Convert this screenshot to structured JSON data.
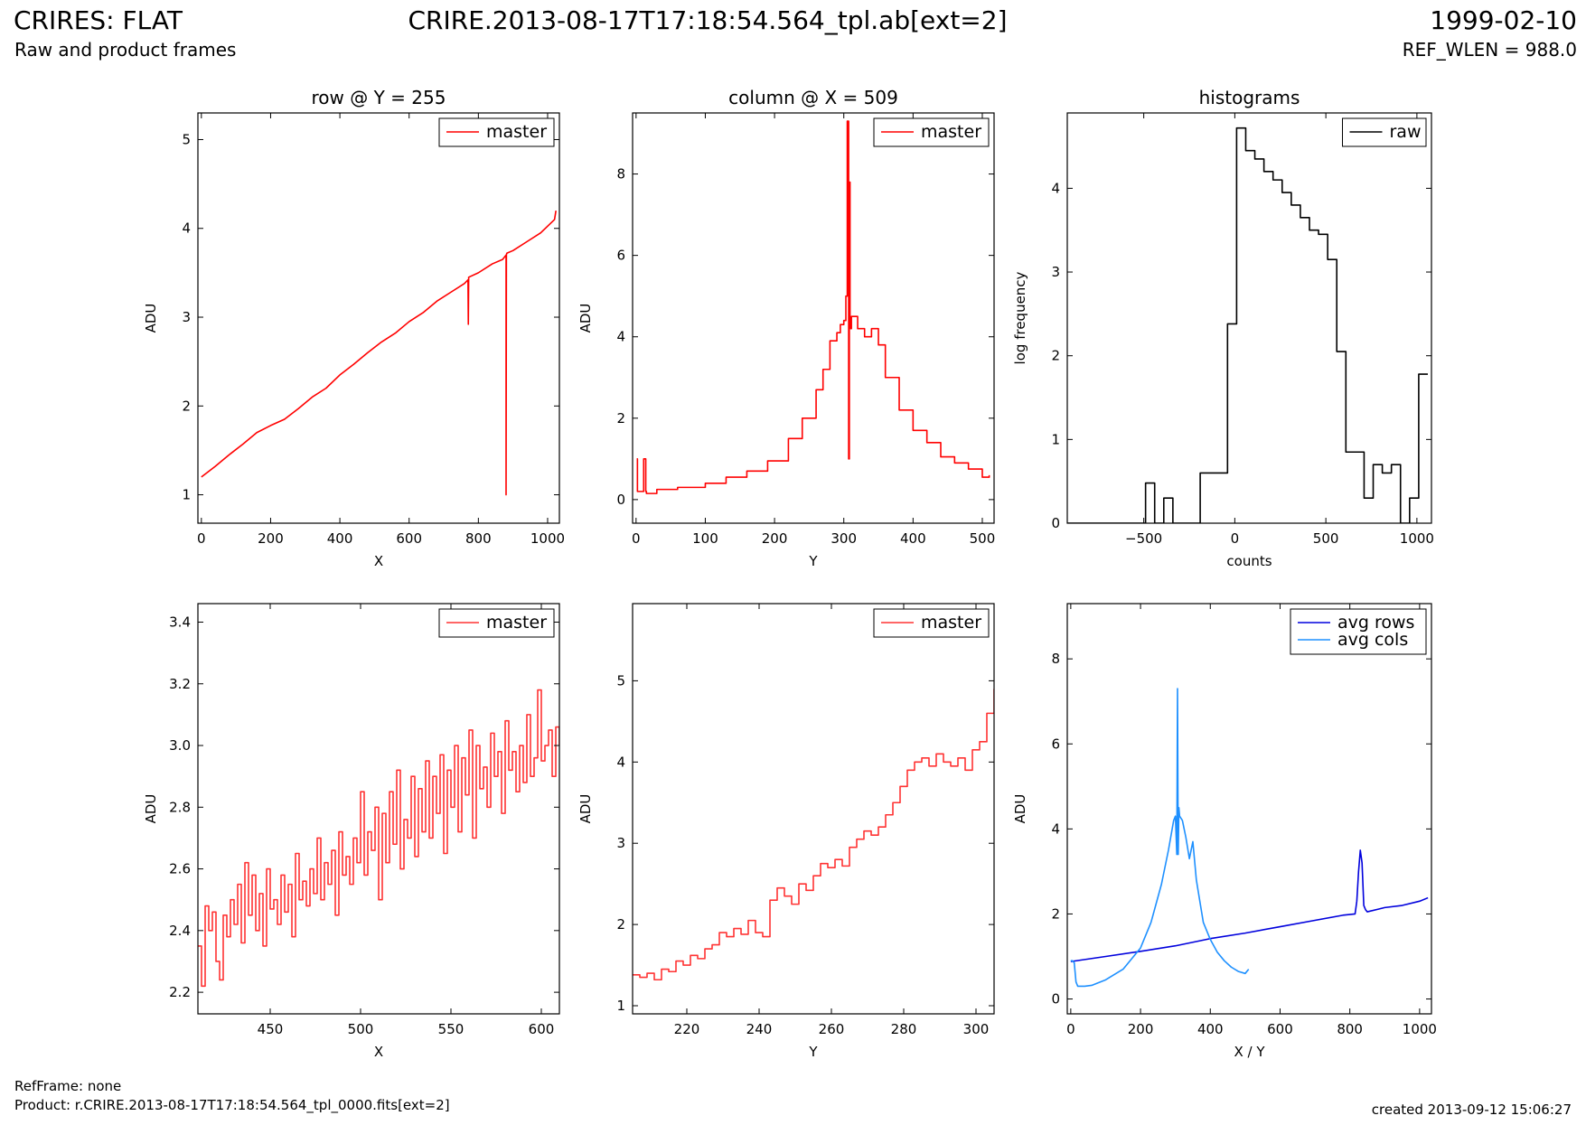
{
  "header": {
    "left_title": "CRIRES: FLAT",
    "left_subtitle": "Raw and product frames",
    "center_title": "CRIRE.2013-08-17T17:18:54.564_tpl.ab[ext=2]",
    "right_date": "1999-02-10",
    "right_subtitle": "REF_WLEN = 988.0"
  },
  "footer": {
    "refframe": "RefFrame: none",
    "product": "Product: r.CRIRE.2013-08-17T17:18:54.564_tpl_0000.fits[ext=2]",
    "created": "created 2013-09-12 15:06:27"
  },
  "colors": {
    "master": "#ff0000",
    "raw": "#000000",
    "avg_rows": "#0000dd",
    "avg_cols": "#1e90ff"
  },
  "chart_data": [
    {
      "type": "line",
      "title": "row @ Y = 255",
      "xlabel": "X",
      "ylabel": "ADU",
      "xlim": [
        -10,
        1034
      ],
      "ylim": [
        0.68,
        5.3
      ],
      "xticks": [
        0,
        200,
        400,
        600,
        800,
        1000
      ],
      "yticks": [
        1,
        2,
        3,
        4,
        5
      ],
      "legend": "top-right",
      "series": [
        {
          "name": "master",
          "color": "#ff0000",
          "step": false,
          "x": [
            0,
            40,
            80,
            120,
            160,
            200,
            240,
            280,
            320,
            360,
            400,
            440,
            480,
            520,
            560,
            600,
            640,
            680,
            720,
            760,
            770,
            771,
            772,
            800,
            840,
            870,
            880,
            880,
            881,
            882,
            900,
            940,
            980,
            1020,
            1024
          ],
          "y": [
            1.2,
            1.32,
            1.45,
            1.57,
            1.7,
            1.78,
            1.85,
            1.97,
            2.1,
            2.2,
            2.35,
            2.47,
            2.6,
            2.72,
            2.82,
            2.95,
            3.05,
            3.18,
            3.28,
            3.38,
            3.42,
            2.92,
            3.45,
            3.5,
            3.6,
            3.65,
            3.7,
            1.0,
            3.7,
            3.72,
            3.75,
            3.85,
            3.95,
            4.1,
            4.2
          ]
        }
      ]
    },
    {
      "type": "line",
      "title": "column @ X = 509",
      "xlabel": "Y",
      "ylabel": "ADU",
      "xlim": [
        -5,
        517
      ],
      "ylim": [
        -0.58,
        9.5
      ],
      "xticks": [
        0,
        100,
        200,
        300,
        400,
        500
      ],
      "yticks": [
        0,
        2,
        4,
        6,
        8
      ],
      "legend": "top-right",
      "series": [
        {
          "name": "master",
          "color": "#ff0000",
          "step": true,
          "x": [
            1,
            2,
            10,
            11,
            14,
            15,
            30,
            60,
            100,
            130,
            160,
            190,
            220,
            240,
            260,
            270,
            280,
            290,
            295,
            300,
            303,
            305,
            307,
            308,
            309,
            310,
            311,
            320,
            330,
            340,
            350,
            360,
            380,
            400,
            420,
            440,
            460,
            480,
            500,
            510
          ],
          "y": [
            1.0,
            0.2,
            0.2,
            1.0,
            0.2,
            0.15,
            0.25,
            0.3,
            0.4,
            0.55,
            0.7,
            0.95,
            1.5,
            2.0,
            2.7,
            3.2,
            3.9,
            4.1,
            4.3,
            4.4,
            5.0,
            9.3,
            1.0,
            7.8,
            4.4,
            4.2,
            4.5,
            4.2,
            4.0,
            4.2,
            3.8,
            3.0,
            2.2,
            1.7,
            1.4,
            1.05,
            0.9,
            0.75,
            0.55,
            0.6
          ]
        }
      ]
    },
    {
      "type": "line",
      "title": "histograms",
      "xlabel": "counts",
      "ylabel": "log frequency",
      "xlim": [
        -920,
        1080
      ],
      "ylim": [
        0,
        4.9
      ],
      "xticks": [
        -500,
        0,
        500,
        1000
      ],
      "xticklabels": [
        "−500",
        "0",
        "500",
        "1000"
      ],
      "yticks": [
        0,
        1,
        2,
        3,
        4
      ],
      "legend": "top-right",
      "series": [
        {
          "name": "raw",
          "color": "#000000",
          "step": true,
          "x": [
            -920,
            -540,
            -490,
            -440,
            -390,
            -340,
            -290,
            -240,
            -190,
            -90,
            -40,
            10,
            60,
            110,
            160,
            210,
            260,
            310,
            360,
            410,
            460,
            510,
            560,
            610,
            660,
            710,
            760,
            810,
            860,
            910,
            960,
            1010,
            1060
          ],
          "y": [
            0,
            0,
            0.48,
            0,
            0.3,
            0,
            0,
            0,
            0.6,
            0.6,
            2.38,
            4.72,
            4.45,
            4.35,
            4.2,
            4.1,
            3.95,
            3.8,
            3.65,
            3.5,
            3.45,
            3.15,
            2.05,
            0.85,
            0.85,
            0.3,
            0.7,
            0.6,
            0.7,
            0,
            0.3,
            1.78,
            1.78
          ]
        }
      ]
    },
    {
      "type": "line",
      "title": "",
      "xlabel": "X",
      "ylabel": "ADU",
      "xlim": [
        410,
        610
      ],
      "ylim": [
        2.13,
        3.46
      ],
      "xticks": [
        450,
        500,
        550,
        600
      ],
      "yticks": [
        2.2,
        2.4,
        2.6,
        2.8,
        3.0,
        3.2,
        3.4
      ],
      "yticklabels": [
        "2.2",
        "2.4",
        "2.6",
        "2.8",
        "3.0",
        "3.2",
        "3.4"
      ],
      "legend": "top-right",
      "series": [
        {
          "name": "master",
          "color": "#ff3333",
          "step": true,
          "x": [
            410,
            412,
            414,
            416,
            418,
            420,
            422,
            424,
            426,
            428,
            430,
            432,
            434,
            436,
            438,
            440,
            442,
            444,
            446,
            448,
            450,
            452,
            454,
            456,
            458,
            460,
            462,
            464,
            466,
            468,
            470,
            472,
            474,
            476,
            478,
            480,
            482,
            484,
            486,
            488,
            490,
            492,
            494,
            496,
            498,
            500,
            502,
            504,
            506,
            508,
            510,
            512,
            514,
            516,
            518,
            520,
            522,
            524,
            526,
            528,
            530,
            532,
            534,
            536,
            538,
            540,
            542,
            544,
            546,
            548,
            550,
            552,
            554,
            556,
            558,
            560,
            562,
            564,
            566,
            568,
            570,
            572,
            574,
            576,
            578,
            580,
            582,
            584,
            586,
            588,
            590,
            592,
            594,
            596,
            598,
            600,
            602,
            604,
            606,
            608,
            610
          ],
          "y": [
            2.35,
            2.22,
            2.48,
            2.4,
            2.46,
            2.3,
            2.24,
            2.45,
            2.38,
            2.5,
            2.42,
            2.55,
            2.36,
            2.62,
            2.45,
            2.58,
            2.4,
            2.52,
            2.35,
            2.6,
            2.47,
            2.5,
            2.42,
            2.58,
            2.46,
            2.55,
            2.38,
            2.65,
            2.5,
            2.56,
            2.48,
            2.6,
            2.52,
            2.7,
            2.5,
            2.62,
            2.55,
            2.66,
            2.45,
            2.72,
            2.58,
            2.64,
            2.55,
            2.7,
            2.62,
            2.85,
            2.58,
            2.72,
            2.66,
            2.8,
            2.5,
            2.78,
            2.62,
            2.85,
            2.68,
            2.92,
            2.6,
            2.76,
            2.7,
            2.9,
            2.64,
            2.86,
            2.72,
            2.95,
            2.7,
            2.9,
            2.78,
            2.97,
            2.65,
            2.92,
            2.8,
            3.0,
            2.72,
            2.96,
            2.84,
            3.05,
            2.7,
            3.0,
            2.86,
            2.93,
            2.8,
            3.04,
            2.9,
            2.98,
            2.78,
            3.08,
            2.92,
            2.98,
            2.85,
            3.0,
            2.88,
            3.1,
            2.9,
            2.96,
            3.18,
            2.95,
            3.0,
            3.05,
            2.9,
            3.06,
            3.0
          ]
        }
      ]
    },
    {
      "type": "line",
      "title": "",
      "xlabel": "Y",
      "ylabel": "ADU",
      "xlim": [
        205,
        305
      ],
      "ylim": [
        0.9,
        5.95
      ],
      "xticks": [
        220,
        240,
        260,
        280,
        300
      ],
      "yticks": [
        1,
        2,
        3,
        4,
        5
      ],
      "legend": "top-right",
      "series": [
        {
          "name": "master",
          "color": "#ff3333",
          "step": true,
          "x": [
            205,
            207,
            209,
            211,
            213,
            215,
            217,
            219,
            221,
            223,
            225,
            227,
            229,
            231,
            233,
            235,
            237,
            239,
            241,
            243,
            245,
            247,
            249,
            251,
            253,
            255,
            257,
            259,
            261,
            263,
            265,
            267,
            269,
            271,
            273,
            275,
            277,
            279,
            281,
            283,
            285,
            287,
            289,
            291,
            293,
            295,
            297,
            299,
            301,
            303,
            305
          ],
          "y": [
            1.38,
            1.35,
            1.4,
            1.32,
            1.45,
            1.42,
            1.55,
            1.5,
            1.62,
            1.58,
            1.7,
            1.75,
            1.9,
            1.85,
            1.95,
            1.88,
            2.05,
            1.9,
            1.85,
            2.3,
            2.45,
            2.35,
            2.25,
            2.5,
            2.42,
            2.6,
            2.75,
            2.7,
            2.8,
            2.72,
            2.95,
            3.05,
            3.15,
            3.1,
            3.2,
            3.35,
            3.5,
            3.7,
            3.9,
            4.0,
            4.05,
            3.95,
            4.1,
            4.0,
            3.95,
            4.05,
            3.9,
            4.15,
            4.25,
            4.6,
            4.9
          ]
        }
      ]
    },
    {
      "type": "line",
      "title": "",
      "xlabel": "X / Y",
      "ylabel": "ADU",
      "xlim": [
        -10,
        1034
      ],
      "ylim": [
        -0.35,
        9.3
      ],
      "xticks": [
        0,
        200,
        400,
        600,
        800,
        1000
      ],
      "yticks": [
        0,
        2,
        4,
        6,
        8
      ],
      "legend": "top-right",
      "series": [
        {
          "name": "avg rows",
          "color": "#0000dd",
          "step": false,
          "x": [
            0,
            100,
            200,
            300,
            400,
            500,
            600,
            700,
            780,
            815,
            820,
            825,
            830,
            835,
            840,
            845,
            850,
            900,
            950,
            1000,
            1024
          ],
          "y": [
            0.88,
            1.0,
            1.12,
            1.25,
            1.42,
            1.55,
            1.7,
            1.85,
            1.97,
            2.0,
            2.3,
            3.0,
            3.5,
            3.2,
            2.2,
            2.1,
            2.05,
            2.15,
            2.2,
            2.3,
            2.38
          ]
        },
        {
          "name": "avg cols",
          "color": "#1e90ff",
          "step": false,
          "x": [
            0,
            5,
            10,
            15,
            20,
            40,
            60,
            100,
            150,
            200,
            230,
            260,
            280,
            295,
            300,
            304,
            306,
            308,
            310,
            312,
            320,
            330,
            340,
            350,
            360,
            370,
            380,
            400,
            420,
            440,
            460,
            480,
            500,
            510
          ],
          "y": [
            0.9,
            0.9,
            0.85,
            0.4,
            0.3,
            0.3,
            0.32,
            0.45,
            0.7,
            1.2,
            1.8,
            2.7,
            3.5,
            4.2,
            4.3,
            3.4,
            7.3,
            3.4,
            4.5,
            4.3,
            4.2,
            3.8,
            3.3,
            3.7,
            2.8,
            2.3,
            1.8,
            1.4,
            1.1,
            0.9,
            0.75,
            0.65,
            0.6,
            0.7
          ]
        }
      ]
    }
  ]
}
